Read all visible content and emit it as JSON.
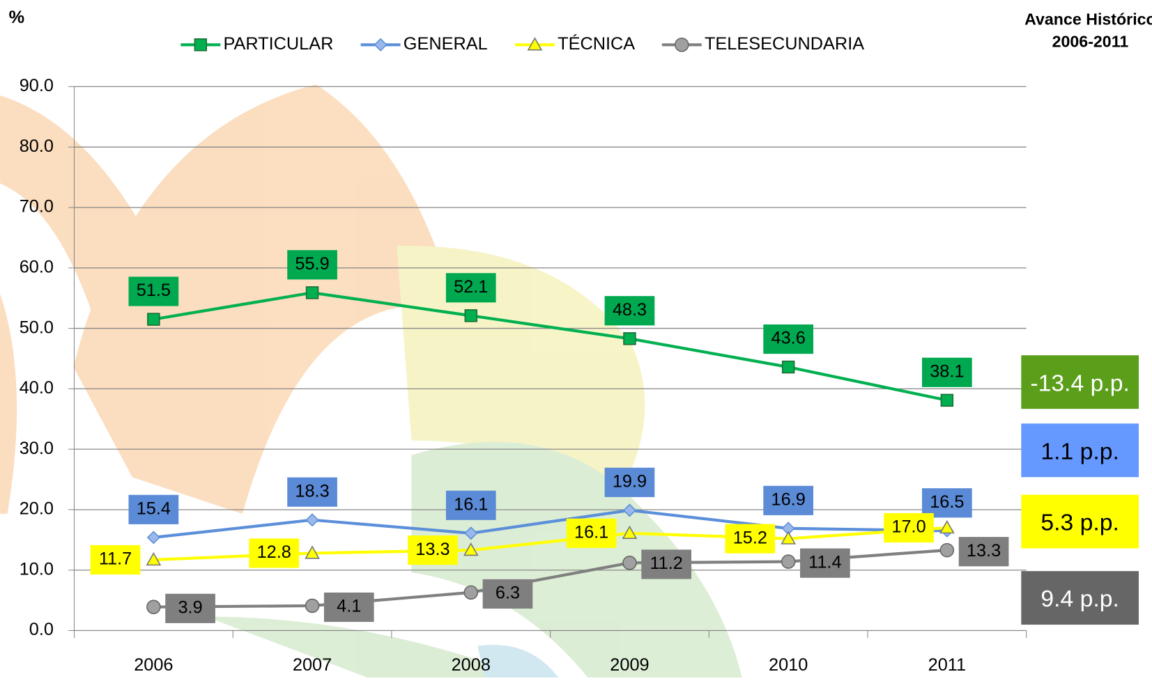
{
  "chart_data": {
    "type": "line",
    "title": "Avance Histórico",
    "subtitle": "2006-2011",
    "y_label": "%",
    "categories": [
      "2006",
      "2007",
      "2008",
      "2009",
      "2010",
      "2011"
    ],
    "series": [
      {
        "name": "PARTICULAR",
        "color": "#00b050",
        "marker": "square",
        "label_color": "#00a94f",
        "label_pos": "above",
        "values": [
          51.5,
          55.9,
          52.1,
          48.3,
          43.6,
          38.1
        ]
      },
      {
        "name": "GENERAL",
        "color": "#5b8fd9",
        "marker": "diamond",
        "label_color": "#5b8ad6",
        "label_pos": "above",
        "values": [
          15.4,
          18.3,
          16.1,
          19.9,
          16.9,
          16.5
        ]
      },
      {
        "name": "TÉCNICA",
        "color": "#ffff00",
        "marker": "triangle",
        "label_color": "#ffff00",
        "label_pos": "left",
        "values": [
          11.7,
          12.8,
          13.3,
          16.1,
          15.2,
          17.0
        ],
        "value_labels": [
          "11.7",
          "12.8",
          "13.3",
          "16.1",
          "15.2",
          "17.0"
        ]
      },
      {
        "name": "TELESECUNDARIA",
        "color": "#808080",
        "marker": "circle",
        "label_color": "#7f7f7f",
        "label_pos": "right",
        "values": [
          3.9,
          4.1,
          6.3,
          11.2,
          11.4,
          13.3
        ]
      }
    ],
    "ylim": [
      0,
      90
    ],
    "yticks": [
      {
        "value": 0,
        "label": "0.0"
      },
      {
        "value": 10,
        "label": "10.0"
      },
      {
        "value": 20,
        "label": "20.0"
      },
      {
        "value": 30,
        "label": "30.0"
      },
      {
        "value": 40,
        "label": "40.0"
      },
      {
        "value": 50,
        "label": "50.0"
      },
      {
        "value": 60,
        "label": "60.0"
      },
      {
        "value": 70,
        "label": "70.0"
      },
      {
        "value": 80,
        "label": "80.0"
      },
      {
        "value": 90,
        "label": "90.0"
      }
    ],
    "grid": true,
    "legend": "top",
    "annotations": [
      {
        "text": "-13.4 p.p.",
        "color": "#5a9e1a",
        "text_color": "#ffffff"
      },
      {
        "text": "1.1 p.p.",
        "color": "#6699ff",
        "text_color": "#000000"
      },
      {
        "text": "5.3 p.p.",
        "color": "#ffff00",
        "text_color": "#000000"
      },
      {
        "text": "9.4 p.p.",
        "color": "#666666",
        "text_color": "#ffffff"
      }
    ]
  }
}
